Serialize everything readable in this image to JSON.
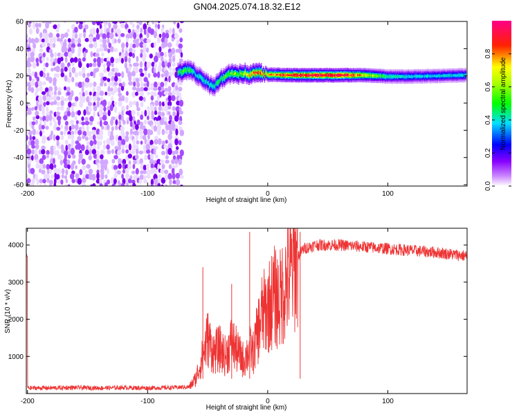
{
  "title": "GN04.2025.074.18.32.E12",
  "chart_data": [
    {
      "type": "heatmap",
      "title": "GN04.2025.074.18.32.E12",
      "xlabel": "Height of straight line (km)",
      "ylabel": "Frequency (Hz)",
      "xlim": [
        -201,
        166
      ],
      "ylim": [
        -61,
        60
      ],
      "x_ticks": [
        -200,
        -100,
        0,
        100
      ],
      "y_ticks": [
        60,
        40,
        20,
        0,
        -20,
        -40,
        -60
      ],
      "colorbar": {
        "label": "Normalized spectral amplitude",
        "range": [
          0,
          1
        ],
        "ticks": [
          "0.0",
          "0.2",
          "0.4",
          "0.6",
          "0.8"
        ],
        "colormap": [
          "#ffffff",
          "#8800ff",
          "#0000ff",
          "#00e0ff",
          "#00ff00",
          "#ffff00",
          "#ff0000",
          "#ff0088"
        ]
      },
      "noise_region": {
        "x_range": [
          -200,
          -72
        ],
        "freq_range": [
          -60,
          60
        ],
        "amplitude": 0.3
      },
      "signal_track": [
        {
          "x": -75,
          "freq": 22,
          "amp": 0.55
        },
        {
          "x": -70,
          "freq": 24,
          "amp": 0.6
        },
        {
          "x": -65,
          "freq": 25,
          "amp": 0.55
        },
        {
          "x": -60,
          "freq": 21,
          "amp": 0.45
        },
        {
          "x": -55,
          "freq": 18,
          "amp": 0.5
        },
        {
          "x": -50,
          "freq": 14,
          "amp": 0.45
        },
        {
          "x": -45,
          "freq": 12,
          "amp": 0.5
        },
        {
          "x": -40,
          "freq": 17,
          "amp": 0.55
        },
        {
          "x": -35,
          "freq": 20,
          "amp": 0.6
        },
        {
          "x": -30,
          "freq": 22,
          "amp": 0.65
        },
        {
          "x": -25,
          "freq": 21,
          "amp": 0.65
        },
        {
          "x": -20,
          "freq": 22,
          "amp": 0.7
        },
        {
          "x": -15,
          "freq": 21,
          "amp": 0.75
        },
        {
          "x": -10,
          "freq": 22,
          "amp": 0.85
        },
        {
          "x": 0,
          "freq": 21,
          "amp": 0.8
        },
        {
          "x": 20,
          "freq": 20.5,
          "amp": 0.9
        },
        {
          "x": 40,
          "freq": 20.5,
          "amp": 0.95
        },
        {
          "x": 60,
          "freq": 20.5,
          "amp": 0.95
        },
        {
          "x": 80,
          "freq": 20.5,
          "amp": 0.75
        },
        {
          "x": 100,
          "freq": 19.5,
          "amp": 0.5
        },
        {
          "x": 120,
          "freq": 19.5,
          "amp": 0.45
        },
        {
          "x": 140,
          "freq": 20,
          "amp": 0.45
        },
        {
          "x": 165,
          "freq": 20.5,
          "amp": 0.45
        }
      ]
    },
    {
      "type": "line",
      "xlabel": "Height of straight line (km)",
      "ylabel": "SNR (10 * v/v)",
      "xlim": [
        -201,
        166
      ],
      "ylim": [
        0,
        4450
      ],
      "x_ticks": [
        -200,
        -100,
        0,
        100
      ],
      "y_ticks": [
        1000,
        2000,
        3000,
        4000
      ],
      "color": "#ee3333",
      "series": [
        {
          "x": [
            -200,
            -180,
            -160,
            -140,
            -120,
            -100,
            -80,
            -65,
            -60,
            -55,
            -50,
            -45,
            -40,
            -35,
            -30,
            -25,
            -20,
            -15,
            -12,
            -8,
            -5,
            0,
            5,
            10,
            15,
            20,
            25,
            30,
            40,
            50,
            60,
            80,
            100,
            120,
            140,
            166
          ],
          "values": [
            150,
            150,
            160,
            150,
            160,
            150,
            160,
            180,
            400,
            900,
            1500,
            1100,
            1200,
            1000,
            1400,
            1100,
            900,
            1200,
            1100,
            1700,
            2100,
            2300,
            2600,
            2500,
            3000,
            3300,
            3700,
            3900,
            4000,
            4000,
            4000,
            3950,
            3900,
            3850,
            3800,
            3700
          ]
        }
      ],
      "spikes": [
        {
          "x": -54,
          "y": 3400
        },
        {
          "x": -30,
          "y": 2950
        },
        {
          "x": -15,
          "y": 4350
        },
        {
          "x": 27,
          "y": 4350
        }
      ]
    }
  ]
}
